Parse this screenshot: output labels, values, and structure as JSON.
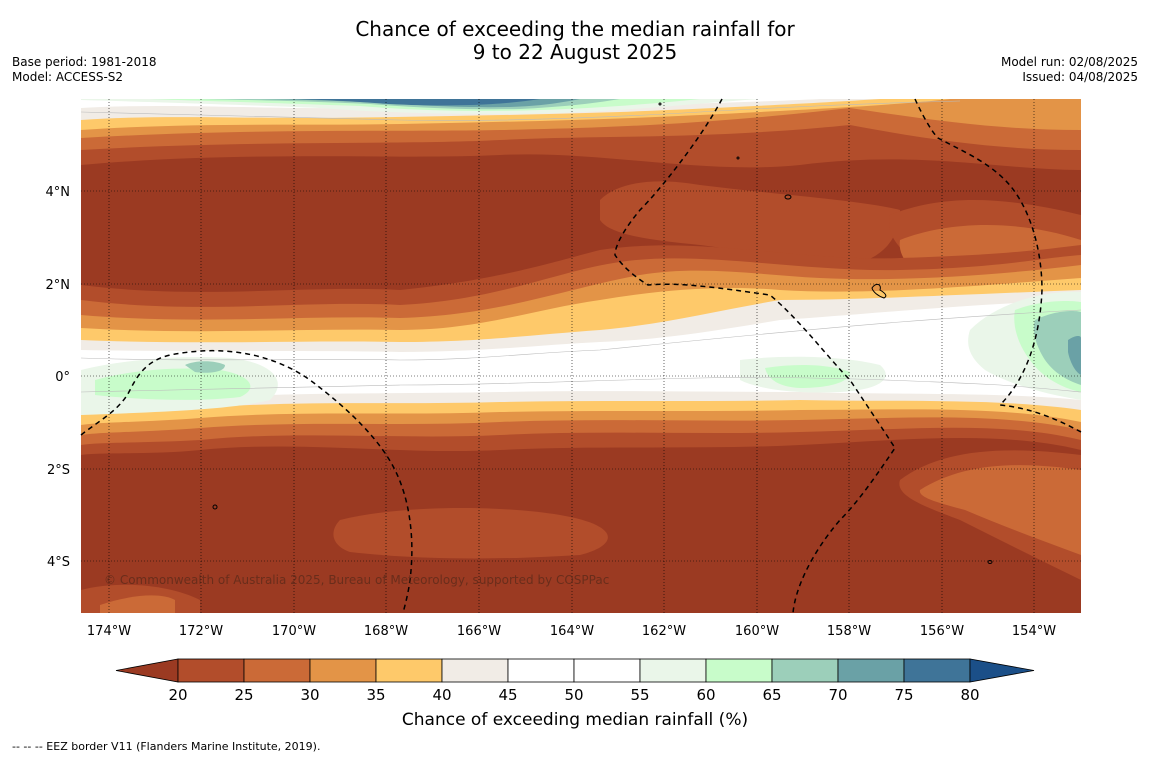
{
  "title_line1": "Chance of exceeding the median rainfall for",
  "title_line2": "9 to 22 August 2025",
  "base_period": "Base period: 1981-2018",
  "model": "Model: ACCESS-S2",
  "model_run": "Model run: 02/08/2025",
  "issued": "Issued: 04/08/2025",
  "copyright": "© Commonwealth of Australia 2025, Bureau of Meteorology, supported by COSPPac",
  "footnote": "--  --  -- EEZ border V11 (Flanders Marine Institute, 2019).",
  "colorbar_title": "Chance of exceeding median rainfall (%)",
  "lon_ticks": [
    "174°W",
    "172°W",
    "170°W",
    "168°W",
    "166°W",
    "164°W",
    "162°W",
    "160°W",
    "158°W",
    "156°W",
    "154°W"
  ],
  "lat_ticks": [
    "4°N",
    "2°N",
    "0°",
    "2°S",
    "4°S"
  ],
  "colorbar": {
    "ticks": [
      "20",
      "25",
      "30",
      "35",
      "40",
      "45",
      "50",
      "55",
      "60",
      "65",
      "70",
      "75",
      "80"
    ],
    "colors": [
      "#9b3a22",
      "#b24d2b",
      "#cb6a37",
      "#e39447",
      "#fec96a",
      "#f1ece6",
      "#ffffff",
      "#ffffff",
      "#eaf6e9",
      "#c8fcca",
      "#9ccfba",
      "#6aa1a6",
      "#3f7498",
      "#1b4f88"
    ]
  },
  "bands": {
    "deep": "#9b3a22",
    "p20": "#b24d2b",
    "p25": "#cb6a37",
    "p30": "#e39447",
    "p35": "#fec96a",
    "p40": "#f1ece6",
    "p55": "#eaf6e9",
    "p60": "#c8fcca",
    "p65": "#9ccfba",
    "p70": "#6aa1a6",
    "p75": "#3f7498"
  }
}
